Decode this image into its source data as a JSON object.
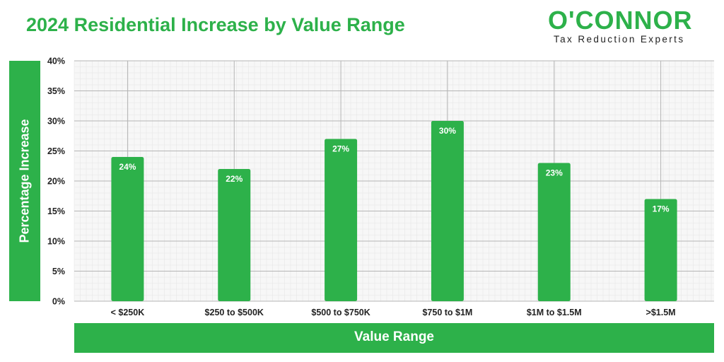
{
  "header": {
    "title": "2024 Residential Increase by Value Range"
  },
  "logo": {
    "name": "O'CONNOR",
    "tagline": "Tax Reduction Experts"
  },
  "colors": {
    "bar": "#2db14a",
    "grid_major": "#b5b5b5",
    "grid_minor": "#e6e6e6",
    "plot_bg": "#f7f7f7"
  },
  "chart_data": {
    "type": "bar",
    "title": "2024 Residential Increase by Value Range",
    "xlabel": "Value Range",
    "ylabel": "Percentage Increase",
    "categories": [
      "< $250K",
      "$250 to $500K",
      "$500 to $750K",
      "$750 to $1M",
      "$1M to $1.5M",
      ">$1.5M"
    ],
    "values": [
      24,
      22,
      27,
      30,
      23,
      17
    ],
    "data_labels": [
      "24%",
      "22%",
      "27%",
      "30%",
      "23%",
      "17%"
    ],
    "ylim": [
      0,
      40
    ],
    "yticks": [
      "0%",
      "5%",
      "10%",
      "15%",
      "20%",
      "25%",
      "30%",
      "35%",
      "40%"
    ],
    "grid": true,
    "legend": "none"
  }
}
